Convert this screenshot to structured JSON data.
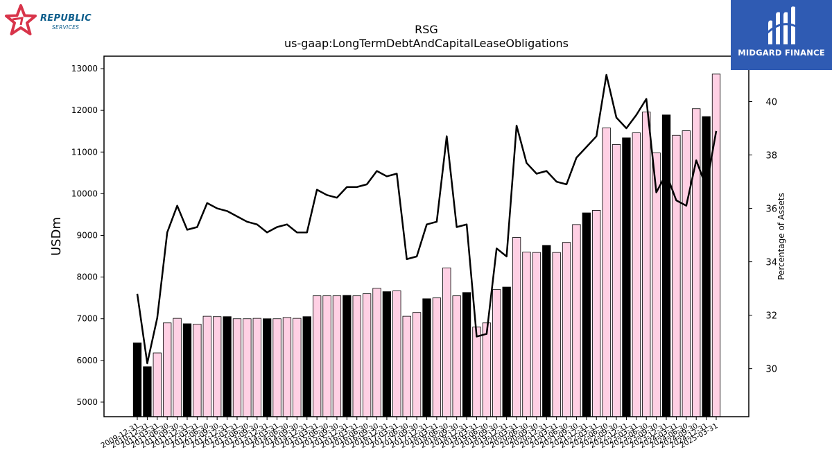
{
  "logos": {
    "left_brand": "REPUBLIC",
    "left_sub": "SERVICES",
    "right_brand": "MIDGARD FINANCE"
  },
  "chart_data": {
    "type": "bar",
    "title": "RSG",
    "subtitle": "us-gaap:LongTermDebtAndCapitalLeaseObligations",
    "ylabel": "USDm",
    "y2label": "Percentage of Assets",
    "ylim": [
      4650,
      13300
    ],
    "yticks": [
      5000,
      6000,
      7000,
      8000,
      9000,
      10000,
      11000,
      12000,
      13000
    ],
    "y2lim": [
      28.2,
      41.7
    ],
    "y2ticks": [
      30,
      32,
      34,
      36,
      38,
      40
    ],
    "grid": false,
    "colors": {
      "bar_default": "#ffd0e4",
      "bar_highlight": "#000000",
      "line": "#000000"
    },
    "categories": [
      "2009-12-31",
      "2010-12-31",
      "2011-03-31",
      "2011-06-30",
      "2011-09-30",
      "2011-12-31",
      "2012-03-31",
      "2012-06-30",
      "2012-09-30",
      "2012-12-31",
      "2013-03-31",
      "2013-06-30",
      "2013-09-30",
      "2013-12-31",
      "2014-03-31",
      "2014-06-30",
      "2014-09-30",
      "2014-12-31",
      "2015-03-31",
      "2015-06-30",
      "2015-09-30",
      "2015-12-31",
      "2016-03-31",
      "2016-06-30",
      "2016-09-30",
      "2016-12-31",
      "2017-03-31",
      "2017-06-30",
      "2017-09-30",
      "2017-12-31",
      "2018-03-31",
      "2018-06-30",
      "2018-09-30",
      "2018-12-31",
      "2019-03-31",
      "2019-06-30",
      "2019-09-30",
      "2019-12-31",
      "2020-03-31",
      "2020-06-30",
      "2020-09-30",
      "2020-12-31",
      "2021-03-31",
      "2021-06-30",
      "2021-09-30",
      "2021-12-31",
      "2022-03-31",
      "2022-06-30",
      "2022-09-30",
      "2022-12-31",
      "2023-03-31",
      "2023-06-30",
      "2023-09-30",
      "2023-12-31",
      "2024-03-31",
      "2024-06-30",
      "2024-09-30",
      "2024-12-31",
      "2025-03-31"
    ],
    "series": [
      {
        "kind": "bar",
        "values": [
          6420,
          5850,
          6180,
          6900,
          7010,
          6880,
          6870,
          7060,
          7050,
          7050,
          7000,
          7000,
          7010,
          7000,
          7000,
          7030,
          7010,
          7050,
          7550,
          7550,
          7550,
          7560,
          7550,
          7600,
          7730,
          7650,
          7670,
          7060,
          7150,
          7480,
          7500,
          8220,
          7550,
          7630,
          6800,
          6900,
          7700,
          7760,
          8950,
          8600,
          8590,
          8760,
          8590,
          8830,
          9260,
          9540,
          9600,
          11580,
          11180,
          11340,
          11460,
          11960,
          10980,
          11890,
          11400,
          11510,
          12040,
          11850,
          12870
        ],
        "highlight": [
          true,
          true,
          false,
          false,
          false,
          true,
          false,
          false,
          false,
          true,
          false,
          false,
          false,
          true,
          false,
          false,
          false,
          true,
          false,
          false,
          false,
          true,
          false,
          false,
          false,
          true,
          false,
          false,
          false,
          true,
          false,
          false,
          false,
          true,
          false,
          false,
          false,
          true,
          false,
          false,
          false,
          true,
          false,
          false,
          false,
          true,
          false,
          false,
          false,
          true,
          false,
          false,
          false,
          true,
          false,
          false,
          false,
          true,
          false
        ]
      },
      {
        "kind": "line",
        "axis": "right",
        "values": [
          32.8,
          30.2,
          31.9,
          35.1,
          36.1,
          35.2,
          35.3,
          36.2,
          36.0,
          35.9,
          35.7,
          35.5,
          35.4,
          35.1,
          35.3,
          35.4,
          35.1,
          35.1,
          36.7,
          36.5,
          36.4,
          36.8,
          36.8,
          36.9,
          37.4,
          37.2,
          37.3,
          34.1,
          34.2,
          35.4,
          35.5,
          38.7,
          35.3,
          35.4,
          31.2,
          31.3,
          34.5,
          34.2,
          39.1,
          37.7,
          37.3,
          37.4,
          37.0,
          36.9,
          37.9,
          38.3,
          38.7,
          41.0,
          39.4,
          39.0,
          39.5,
          40.1,
          36.6,
          37.3,
          36.3,
          36.1,
          37.8,
          36.8,
          38.9
        ]
      }
    ]
  }
}
